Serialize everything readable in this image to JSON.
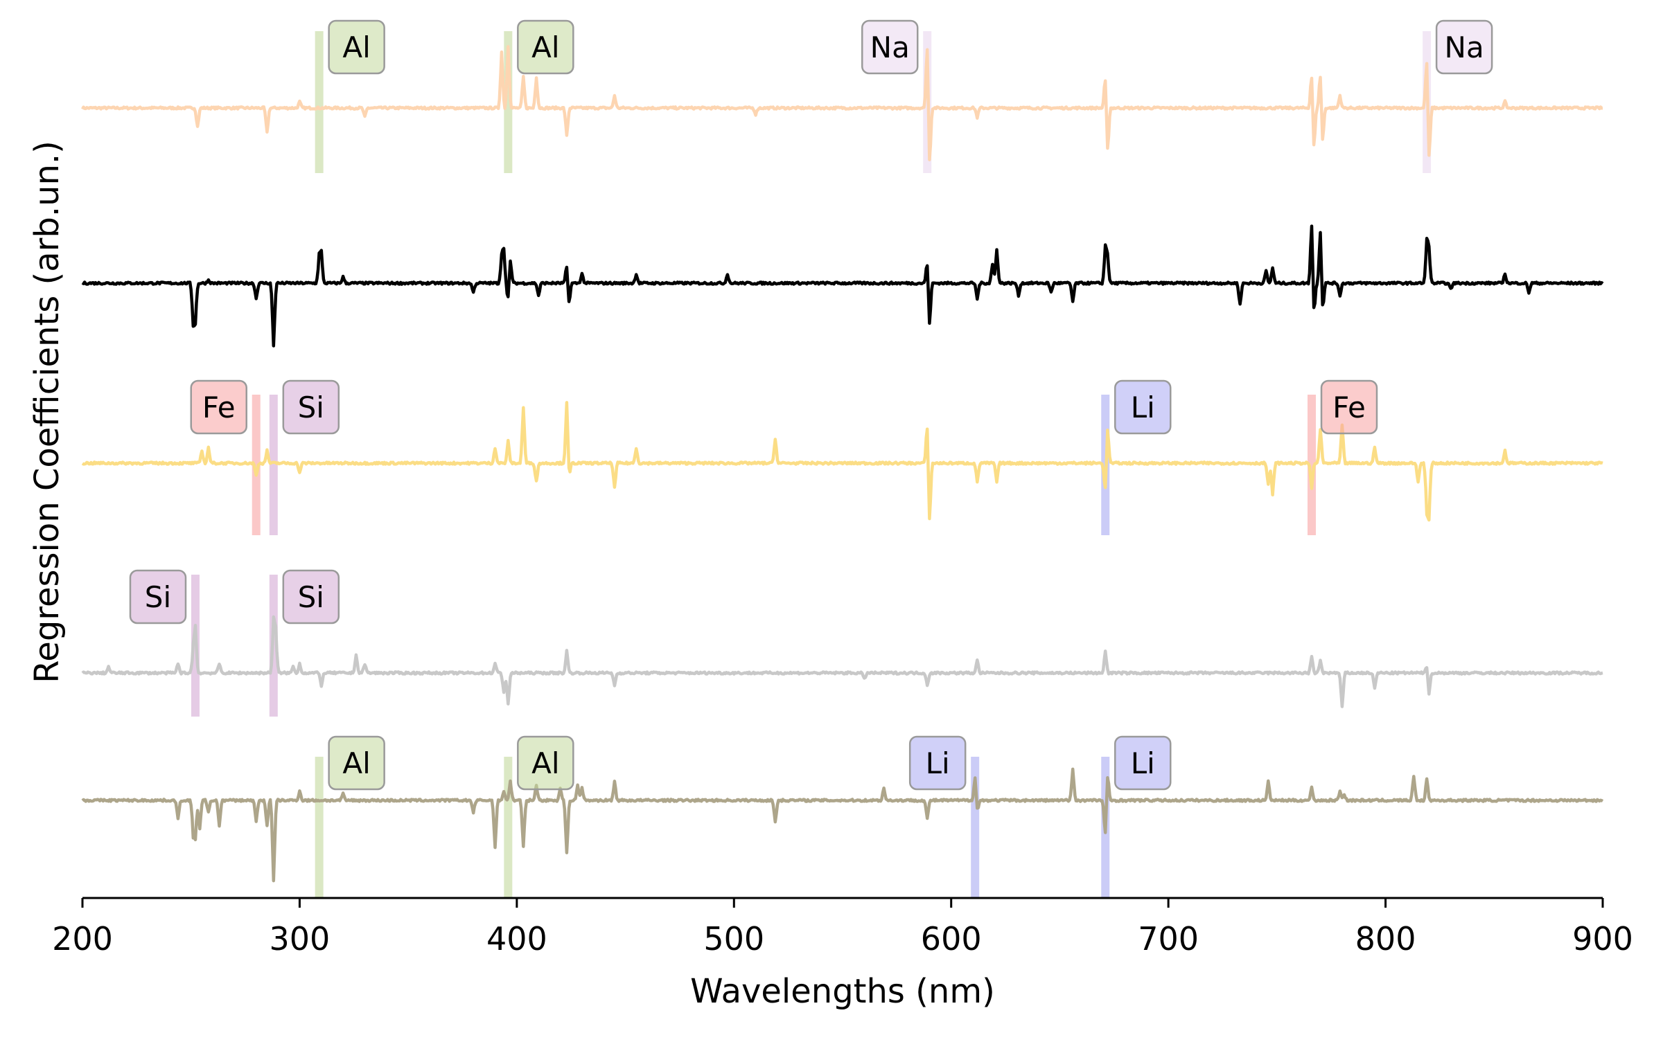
{
  "chart_data": {
    "type": "line",
    "title": "",
    "xlabel": "Wavelengths (nm)",
    "ylabel": "Regression Coefficients (arb.un.)",
    "xlim": [
      200,
      900
    ],
    "xticks": [
      "200",
      "300",
      "400",
      "500",
      "600",
      "700",
      "800",
      "900"
    ],
    "xtick_values": [
      200,
      300,
      400,
      500,
      600,
      700,
      800,
      900
    ],
    "y_axis_visible": false,
    "grid": false,
    "legend": "none",
    "series": [
      {
        "color": "#fdd5b1",
        "spikes": [
          [
            253,
            -0.3
          ],
          [
            285,
            -0.4
          ],
          [
            300,
            0.1
          ],
          [
            330,
            -0.15
          ],
          [
            393,
            0.9
          ],
          [
            396,
            1.0
          ],
          [
            403,
            0.5
          ],
          [
            409,
            0.5
          ],
          [
            423,
            -0.45
          ],
          [
            445,
            0.2
          ],
          [
            510,
            -0.1
          ],
          [
            589,
            1.1
          ],
          [
            590,
            -1.0
          ],
          [
            612,
            -0.15
          ],
          [
            671,
            0.55
          ],
          [
            672,
            -0.75
          ],
          [
            766,
            0.6
          ],
          [
            767,
            -0.7
          ],
          [
            770,
            0.6
          ],
          [
            771,
            -0.6
          ],
          [
            779,
            0.2
          ],
          [
            819,
            0.85
          ],
          [
            820,
            -0.9
          ],
          [
            855,
            0.1
          ]
        ]
      },
      {
        "color": "#000000",
        "spikes": [
          [
            251,
            -0.6
          ],
          [
            252,
            -0.55
          ],
          [
            258,
            0.05
          ],
          [
            280,
            -0.25
          ],
          [
            288,
            -1.0
          ],
          [
            309,
            0.4
          ],
          [
            310,
            0.45
          ],
          [
            320,
            0.1
          ],
          [
            380,
            -0.15
          ],
          [
            393,
            0.4
          ],
          [
            394,
            0.5
          ],
          [
            396,
            -0.3
          ],
          [
            397,
            0.4
          ],
          [
            410,
            -0.2
          ],
          [
            423,
            0.3
          ],
          [
            424,
            -0.35
          ],
          [
            430,
            0.15
          ],
          [
            455,
            0.15
          ],
          [
            497,
            0.15
          ],
          [
            589,
            0.4
          ],
          [
            590,
            -0.7
          ],
          [
            612,
            -0.25
          ],
          [
            619,
            0.3
          ],
          [
            621,
            0.55
          ],
          [
            631,
            -0.2
          ],
          [
            646,
            -0.15
          ],
          [
            656,
            -0.3
          ],
          [
            671,
            0.55
          ],
          [
            672,
            0.4
          ],
          [
            733,
            -0.35
          ],
          [
            745,
            0.2
          ],
          [
            748,
            0.25
          ],
          [
            766,
            1.0
          ],
          [
            767,
            -0.55
          ],
          [
            770,
            0.9
          ],
          [
            771,
            -0.5
          ],
          [
            779,
            -0.2
          ],
          [
            819,
            0.65
          ],
          [
            820,
            0.5
          ],
          [
            830,
            -0.1
          ],
          [
            855,
            0.15
          ],
          [
            866,
            -0.15
          ]
        ]
      },
      {
        "color": "#fbdd85",
        "spikes": [
          [
            255,
            0.2
          ],
          [
            258,
            0.25
          ],
          [
            280,
            -0.2
          ],
          [
            285,
            0.2
          ],
          [
            300,
            -0.15
          ],
          [
            390,
            0.25
          ],
          [
            396,
            0.35
          ],
          [
            403,
            0.9
          ],
          [
            409,
            -0.3
          ],
          [
            423,
            1.0
          ],
          [
            424,
            -0.25
          ],
          [
            445,
            -0.4
          ],
          [
            455,
            0.25
          ],
          [
            519,
            0.4
          ],
          [
            589,
            0.7
          ],
          [
            590,
            -1.0
          ],
          [
            612,
            -0.3
          ],
          [
            621,
            -0.3
          ],
          [
            671,
            -0.5
          ],
          [
            672,
            0.6
          ],
          [
            746,
            -0.35
          ],
          [
            748,
            -0.5
          ],
          [
            766,
            -0.4
          ],
          [
            770,
            0.55
          ],
          [
            780,
            0.6
          ],
          [
            795,
            0.25
          ],
          [
            815,
            -0.3
          ],
          [
            819,
            -0.7
          ],
          [
            820,
            -0.8
          ],
          [
            855,
            0.2
          ]
        ]
      },
      {
        "color": "#c8c8c8",
        "spikes": [
          [
            212,
            0.1
          ],
          [
            244,
            0.15
          ],
          [
            251,
            0.35
          ],
          [
            252,
            0.7
          ],
          [
            263,
            0.15
          ],
          [
            288,
            0.8
          ],
          [
            289,
            0.6
          ],
          [
            297,
            0.1
          ],
          [
            300,
            0.15
          ],
          [
            310,
            -0.2
          ],
          [
            326,
            0.3
          ],
          [
            330,
            0.15
          ],
          [
            390,
            0.15
          ],
          [
            394,
            -0.3
          ],
          [
            396,
            -0.5
          ],
          [
            423,
            0.35
          ],
          [
            445,
            -0.2
          ],
          [
            560,
            -0.1
          ],
          [
            589,
            -0.2
          ],
          [
            612,
            0.2
          ],
          [
            671,
            0.35
          ],
          [
            766,
            0.25
          ],
          [
            770,
            0.2
          ],
          [
            780,
            -0.55
          ],
          [
            795,
            -0.25
          ],
          [
            819,
            0.15
          ],
          [
            820,
            -0.35
          ]
        ]
      },
      {
        "color": "#ada58a",
        "spikes": [
          [
            244,
            -0.3
          ],
          [
            251,
            -0.5
          ],
          [
            252,
            -0.55
          ],
          [
            254,
            -0.45
          ],
          [
            258,
            -0.2
          ],
          [
            263,
            -0.4
          ],
          [
            280,
            -0.35
          ],
          [
            285,
            -0.4
          ],
          [
            288,
            -1.3
          ],
          [
            300,
            0.15
          ],
          [
            320,
            0.1
          ],
          [
            380,
            -0.2
          ],
          [
            390,
            -0.75
          ],
          [
            394,
            0.15
          ],
          [
            397,
            0.3
          ],
          [
            403,
            -0.75
          ],
          [
            409,
            0.25
          ],
          [
            420,
            0.2
          ],
          [
            423,
            -0.85
          ],
          [
            428,
            0.25
          ],
          [
            430,
            0.2
          ],
          [
            445,
            0.3
          ],
          [
            519,
            -0.35
          ],
          [
            569,
            0.2
          ],
          [
            589,
            -0.3
          ],
          [
            611,
            0.4
          ],
          [
            612,
            -0.2
          ],
          [
            656,
            0.5
          ],
          [
            671,
            -0.6
          ],
          [
            672,
            0.45
          ],
          [
            746,
            0.3
          ],
          [
            766,
            0.2
          ],
          [
            779,
            0.15
          ],
          [
            781,
            0.1
          ],
          [
            813,
            0.4
          ],
          [
            819,
            0.35
          ]
        ]
      }
    ],
    "element_markers": [
      {
        "series": 0,
        "label": "Al",
        "x": 309,
        "color": "#c3d89d",
        "label_side": "right"
      },
      {
        "series": 0,
        "label": "Al",
        "x": 396,
        "color": "#c3d89d",
        "label_side": "right"
      },
      {
        "series": 0,
        "label": "Na",
        "x": 589,
        "color": "#ead7ef",
        "label_side": "left"
      },
      {
        "series": 0,
        "label": "Na",
        "x": 819,
        "color": "#ead7ef",
        "label_side": "right"
      },
      {
        "series": 2,
        "label": "Fe",
        "x": 280,
        "color": "#f8a3a3",
        "label_side": "left"
      },
      {
        "series": 2,
        "label": "Si",
        "x": 288,
        "color": "#d4a9d4",
        "label_side": "right"
      },
      {
        "series": 2,
        "label": "Li",
        "x": 671,
        "color": "#a9aaf2",
        "label_side": "right"
      },
      {
        "series": 2,
        "label": "Fe",
        "x": 766,
        "color": "#f8a3a3",
        "label_side": "right"
      },
      {
        "series": 3,
        "label": "Si",
        "x": 252,
        "color": "#d4a9d4",
        "label_side": "left"
      },
      {
        "series": 3,
        "label": "Si",
        "x": 288,
        "color": "#d4a9d4",
        "label_side": "right"
      },
      {
        "series": 4,
        "label": "Al",
        "x": 309,
        "color": "#c3d89d",
        "label_side": "right"
      },
      {
        "series": 4,
        "label": "Al",
        "x": 396,
        "color": "#c3d89d",
        "label_side": "right"
      },
      {
        "series": 4,
        "label": "Li",
        "x": 611,
        "color": "#a9aaf2",
        "label_side": "left"
      },
      {
        "series": 4,
        "label": "Li",
        "x": 671,
        "color": "#a9aaf2",
        "label_side": "right"
      }
    ]
  }
}
